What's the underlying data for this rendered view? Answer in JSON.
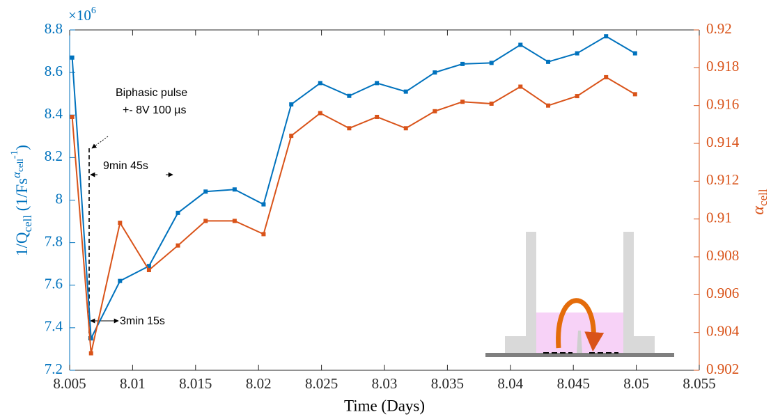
{
  "chart_data": {
    "type": "line",
    "xlabel": "Time (Days)",
    "ylabel_parts": [
      "1/Q",
      "cell",
      " (1/Fs",
      "α",
      "cell",
      "-1",
      ")"
    ],
    "y2label_parts": [
      "α",
      "cell"
    ],
    "y_exponent_parts": [
      "×10",
      "6"
    ],
    "annotations": [
      "Biphasic pulse",
      "+- 8V 100 µs",
      "9min 45s",
      "3min 15s"
    ],
    "x": [
      8.0052,
      8.0067,
      8.009,
      8.0113,
      8.0136,
      8.0158,
      8.0181,
      8.0204,
      8.0226,
      8.0249,
      8.0272,
      8.0294,
      8.0317,
      8.034,
      8.0362,
      8.0385,
      8.0408,
      8.043,
      8.0453,
      8.0476,
      8.0499
    ],
    "series": [
      {
        "name": "1/Qcell",
        "color": "#0072bd",
        "axis": "y",
        "values": [
          8.67,
          7.35,
          7.62,
          7.69,
          7.94,
          8.04,
          8.05,
          7.98,
          8.45,
          8.55,
          8.49,
          8.55,
          8.51,
          8.6,
          8.64,
          8.645,
          8.73,
          8.65,
          8.69,
          8.77,
          8.69
        ]
      },
      {
        "name": "αcell",
        "color": "#d95319",
        "axis": "y2",
        "values": [
          0.9154,
          0.9029,
          0.9098,
          0.9073,
          0.9086,
          0.9099,
          0.9099,
          0.9092,
          0.9144,
          0.9156,
          0.9148,
          0.9154,
          0.9148,
          0.9157,
          0.9162,
          0.9161,
          0.917,
          0.916,
          0.9165,
          0.9175,
          0.9166
        ]
      }
    ],
    "xlim": [
      8.005,
      8.055
    ],
    "xticks": [
      8.005,
      8.01,
      8.015,
      8.02,
      8.025,
      8.03,
      8.035,
      8.04,
      8.045,
      8.05,
      8.055
    ],
    "ylim": [
      7.2,
      8.8
    ],
    "yticks": [
      7.2,
      7.4,
      7.6,
      7.8,
      8,
      8.2,
      8.4,
      8.6,
      8.8
    ],
    "y2lim": [
      0.902,
      0.92
    ],
    "y2ticks": [
      0.902,
      0.904,
      0.906,
      0.908,
      0.91,
      0.912,
      0.914,
      0.916,
      0.918,
      0.92
    ]
  }
}
